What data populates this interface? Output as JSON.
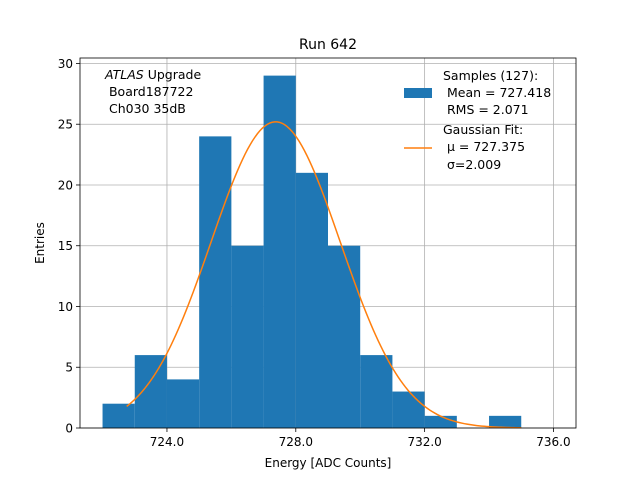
{
  "chart_data": {
    "type": "bar",
    "title": "Run 642",
    "xlabel": "Energy [ADC Counts]",
    "ylabel": "Entries",
    "xlim": [
      721.3,
      736.7
    ],
    "ylim": [
      0,
      30.45
    ],
    "grid": true,
    "x_ticks": [
      724.0,
      728.0,
      732.0,
      736.0
    ],
    "x_tick_labels": [
      "724.0",
      "728.0",
      "732.0",
      "736.0"
    ],
    "y_ticks": [
      0,
      5,
      10,
      15,
      20,
      25,
      30
    ],
    "y_tick_labels": [
      "0",
      "5",
      "10",
      "15",
      "20",
      "25",
      "30"
    ],
    "histogram": {
      "bin_edges": [
        722.0,
        723.0,
        724.0,
        725.0,
        726.0,
        727.0,
        728.0,
        729.0,
        730.0,
        731.0,
        732.0,
        733.0,
        734.0,
        735.0
      ],
      "counts": [
        2,
        6,
        4,
        24,
        15,
        29,
        21,
        15,
        6,
        3,
        1,
        0,
        1
      ],
      "color": "#1f77b4"
    },
    "fit": {
      "mu": 727.375,
      "sigma": 2.009,
      "amplitude": 25.2,
      "x_range": [
        722.75,
        735.0
      ],
      "color": "#ff7f0e"
    },
    "annotation": {
      "italic": "ATLAS",
      "rest": " Upgrade",
      "line2": " Board187722",
      "line3": " Ch030 35dB"
    },
    "legend": {
      "placement": "top-right",
      "hist_label": [
        "Samples (127):",
        " Mean = 727.418",
        " RMS = 2.071"
      ],
      "fit_label": [
        "Gaussian Fit:",
        " μ = 727.375",
        " σ=2.009"
      ]
    }
  }
}
